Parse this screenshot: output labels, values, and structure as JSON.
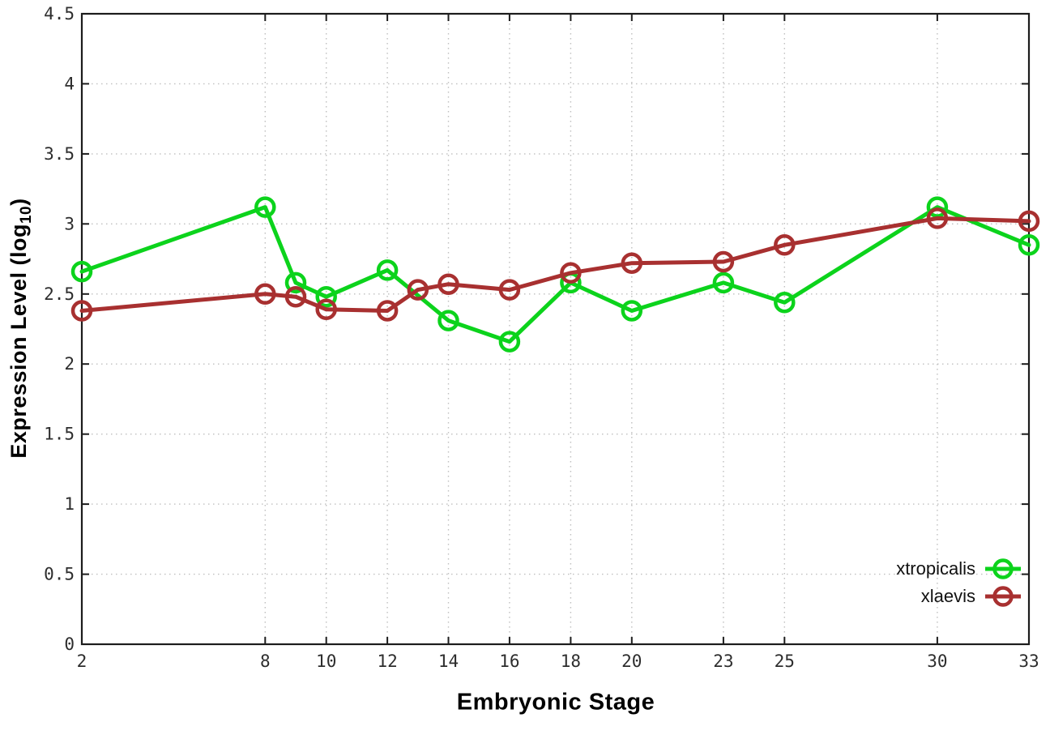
{
  "chart_data": {
    "type": "line",
    "title": "",
    "xlabel": "Embryonic Stage",
    "ylabel": "Expression Level (log10)",
    "ylabel_parts": {
      "prefix": "Expression Level (log",
      "sub": "10",
      "suffix": ")"
    },
    "xlim": [
      2,
      33
    ],
    "ylim": [
      0,
      4.5
    ],
    "xticks": [
      "2",
      "8",
      "10",
      "12",
      "14",
      "16",
      "18",
      "20",
      "23",
      "25",
      "30",
      "33"
    ],
    "yticks": [
      "0",
      "0.5",
      "1",
      "1.5",
      "2",
      "2.5",
      "3",
      "3.5",
      "4",
      "4.5"
    ],
    "grid": true,
    "grid_style": "dotted",
    "legend_position": "bottom-right-inside",
    "marker": "open-circle",
    "colors": {
      "xtropicalis": "#0cd31c",
      "xlaevis": "#a83030",
      "border": "#1c1c1c",
      "grid": "#bfbfbf",
      "tick_text": "#2d2d2d"
    },
    "series": [
      {
        "name": "xtropicalis",
        "color": "#0cd31c",
        "points": [
          [
            2,
            2.66
          ],
          [
            8,
            3.12
          ],
          [
            9,
            2.58
          ],
          [
            10,
            2.48
          ],
          [
            12,
            2.67
          ],
          [
            14,
            2.31
          ],
          [
            16,
            2.16
          ],
          [
            18,
            2.58
          ],
          [
            20,
            2.38
          ],
          [
            23,
            2.58
          ],
          [
            25,
            2.44
          ],
          [
            30,
            3.12
          ],
          [
            33,
            2.85
          ]
        ]
      },
      {
        "name": "xlaevis",
        "color": "#a83030",
        "points": [
          [
            2,
            2.38
          ],
          [
            8,
            2.5
          ],
          [
            9,
            2.48
          ],
          [
            10,
            2.39
          ],
          [
            12,
            2.38
          ],
          [
            13,
            2.53
          ],
          [
            14,
            2.57
          ],
          [
            16,
            2.53
          ],
          [
            18,
            2.65
          ],
          [
            20,
            2.72
          ],
          [
            23,
            2.73
          ],
          [
            25,
            2.85
          ],
          [
            30,
            3.04
          ],
          [
            33,
            3.02
          ]
        ]
      }
    ]
  }
}
